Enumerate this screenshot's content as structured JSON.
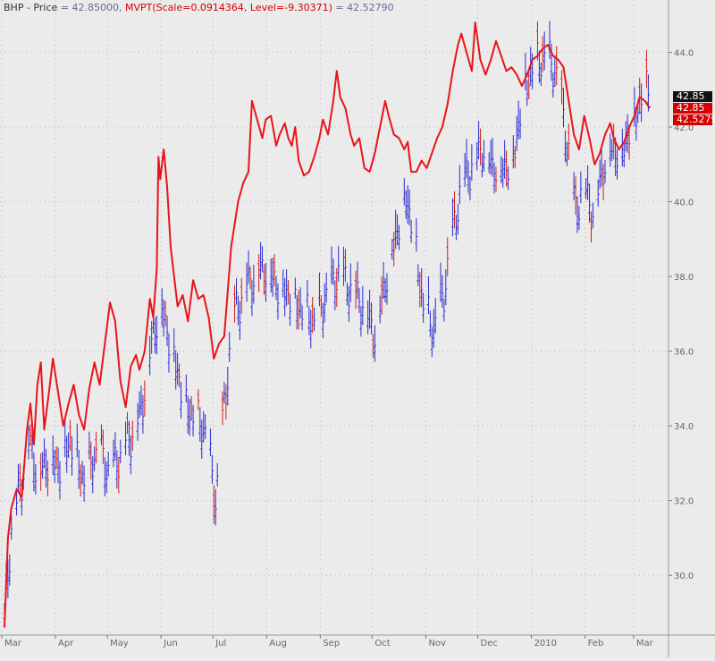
{
  "legend": {
    "symbol": "BHP",
    "separator": " - ",
    "price_label": "Price",
    "price_value": "= 42.85000,",
    "indicator_label": "MVPT(Scale=0.0914364, Level=-9.30371)",
    "indicator_value": "= 42.52790"
  },
  "axis_boxes": {
    "price_last": "42.85",
    "indicator_price": "42.85",
    "indicator_last": "42.5279"
  },
  "colors": {
    "background": "#ebebeb",
    "up_bar": "#2a2ad0",
    "down_bar": "#d41a1a",
    "indicator": "#e8141a",
    "grid": "#b8b8b8"
  },
  "chart_data": {
    "type": "bar",
    "subtype": "ohlc-price-with-indicator-line",
    "title": "",
    "ylim": [
      28.4,
      45.4
    ],
    "y_ticks": [
      "30.0",
      "32.0",
      "34.0",
      "36.0",
      "38.0",
      "40.0",
      "42.0",
      "44.0"
    ],
    "y_tick_values": [
      30,
      32,
      34,
      36,
      38,
      40,
      42,
      44
    ],
    "x_ticks": [
      "Mar",
      "Apr",
      "May",
      "Jun",
      "Jul",
      "Aug",
      "Sep",
      "Oct",
      "Nov",
      "Dec",
      "2010",
      "Feb",
      "Mar"
    ],
    "x_tick_days": [
      0,
      31,
      61,
      92,
      122,
      153,
      184,
      214,
      245,
      275,
      306,
      337,
      365
    ],
    "x_range_days": [
      0,
      378
    ],
    "grid": true,
    "price_series": {
      "name": "BHP",
      "anchors": [
        [
          0,
          28.7
        ],
        [
          4,
          31.3
        ],
        [
          8,
          32.1
        ],
        [
          14,
          33.6
        ],
        [
          20,
          32.7
        ],
        [
          26,
          33.2
        ],
        [
          31,
          32.9
        ],
        [
          38,
          33.6
        ],
        [
          46,
          32.5
        ],
        [
          54,
          33.4
        ],
        [
          61,
          32.7
        ],
        [
          70,
          33.5
        ],
        [
          78,
          34.2
        ],
        [
          86,
          36.5
        ],
        [
          90,
          37.3
        ],
        [
          94,
          36.6
        ],
        [
          98,
          35.9
        ],
        [
          104,
          34.6
        ],
        [
          110,
          34.2
        ],
        [
          116,
          33.9
        ],
        [
          122,
          32.0
        ],
        [
          127,
          34.5
        ],
        [
          132,
          36.9
        ],
        [
          140,
          37.8
        ],
        [
          150,
          38.3
        ],
        [
          158,
          37.8
        ],
        [
          165,
          37.5
        ],
        [
          172,
          37.1
        ],
        [
          180,
          36.8
        ],
        [
          186,
          37.5
        ],
        [
          193,
          38.1
        ],
        [
          200,
          37.7
        ],
        [
          207,
          37.3
        ],
        [
          214,
          36.5
        ],
        [
          220,
          37.9
        ],
        [
          226,
          39.1
        ],
        [
          232,
          40.2
        ],
        [
          237,
          39.0
        ],
        [
          242,
          37.2
        ],
        [
          248,
          36.6
        ],
        [
          254,
          37.6
        ],
        [
          258,
          38.9
        ],
        [
          264,
          40.5
        ],
        [
          270,
          41.0
        ],
        [
          276,
          41.5
        ],
        [
          282,
          41.0
        ],
        [
          288,
          40.9
        ],
        [
          294,
          41.2
        ],
        [
          300,
          43.0
        ],
        [
          306,
          43.7
        ],
        [
          312,
          43.9
        ],
        [
          318,
          43.6
        ],
        [
          322,
          42.6
        ],
        [
          326,
          41.3
        ],
        [
          330,
          39.8
        ],
        [
          335,
          40.5
        ],
        [
          340,
          39.7
        ],
        [
          345,
          40.8
        ],
        [
          350,
          41.5
        ],
        [
          356,
          41.3
        ],
        [
          360,
          41.8
        ],
        [
          364,
          42.3
        ],
        [
          368,
          42.8
        ],
        [
          372,
          43.2
        ]
      ],
      "down_days": [
        5,
        9,
        12,
        15,
        19,
        21,
        25,
        30,
        33,
        38,
        41,
        44,
        50,
        53,
        57,
        62,
        66,
        71,
        74,
        81,
        85,
        90,
        93,
        97,
        101,
        104,
        108,
        112,
        117,
        121,
        126,
        128,
        133,
        137,
        142,
        147,
        150,
        156,
        160,
        164,
        170,
        173,
        178,
        183,
        188,
        192,
        197,
        203,
        208,
        213,
        218,
        225,
        229,
        236,
        240,
        243,
        251,
        256,
        260,
        265,
        271,
        275,
        278,
        284,
        290,
        295,
        299,
        303,
        308,
        311,
        319,
        322,
        326,
        330,
        334,
        339,
        342,
        346,
        352,
        355,
        361,
        367,
        371
      ]
    },
    "indicator_series": {
      "name": "MVPT",
      "anchors": [
        [
          0,
          28.6
        ],
        [
          2,
          31.0
        ],
        [
          4,
          31.8
        ],
        [
          7,
          32.3
        ],
        [
          10,
          32.1
        ],
        [
          13,
          33.9
        ],
        [
          15,
          34.6
        ],
        [
          17,
          33.5
        ],
        [
          19,
          35.1
        ],
        [
          21,
          35.7
        ],
        [
          23,
          33.9
        ],
        [
          26,
          35.0
        ],
        [
          28,
          35.8
        ],
        [
          31,
          34.9
        ],
        [
          34,
          34.0
        ],
        [
          37,
          34.6
        ],
        [
          40,
          35.1
        ],
        [
          43,
          34.3
        ],
        [
          46,
          33.9
        ],
        [
          49,
          35.0
        ],
        [
          52,
          35.7
        ],
        [
          55,
          35.1
        ],
        [
          58,
          36.2
        ],
        [
          61,
          37.3
        ],
        [
          64,
          36.8
        ],
        [
          67,
          35.2
        ],
        [
          70,
          34.5
        ],
        [
          73,
          35.6
        ],
        [
          76,
          35.9
        ],
        [
          78,
          35.5
        ],
        [
          81,
          36.0
        ],
        [
          84,
          37.4
        ],
        [
          86,
          36.9
        ],
        [
          88,
          38.2
        ],
        [
          89,
          41.2
        ],
        [
          90,
          40.6
        ],
        [
          92,
          41.4
        ],
        [
          94,
          40.4
        ],
        [
          96,
          38.8
        ],
        [
          98,
          38.0
        ],
        [
          100,
          37.2
        ],
        [
          103,
          37.5
        ],
        [
          106,
          36.8
        ],
        [
          109,
          37.9
        ],
        [
          112,
          37.4
        ],
        [
          115,
          37.5
        ],
        [
          118,
          36.9
        ],
        [
          121,
          35.8
        ],
        [
          124,
          36.2
        ],
        [
          127,
          36.4
        ],
        [
          131,
          38.8
        ],
        [
          135,
          40.0
        ],
        [
          138,
          40.5
        ],
        [
          141,
          40.8
        ],
        [
          143,
          42.7
        ],
        [
          146,
          42.2
        ],
        [
          149,
          41.7
        ],
        [
          151,
          42.2
        ],
        [
          154,
          42.3
        ],
        [
          157,
          41.5
        ],
        [
          159,
          41.8
        ],
        [
          162,
          42.1
        ],
        [
          164,
          41.7
        ],
        [
          166,
          41.5
        ],
        [
          168,
          42.0
        ],
        [
          170,
          41.1
        ],
        [
          173,
          40.7
        ],
        [
          176,
          40.8
        ],
        [
          179,
          41.2
        ],
        [
          182,
          41.7
        ],
        [
          184,
          42.2
        ],
        [
          187,
          41.8
        ],
        [
          190,
          42.7
        ],
        [
          192,
          43.5
        ],
        [
          194,
          42.8
        ],
        [
          197,
          42.5
        ],
        [
          200,
          41.8
        ],
        [
          202,
          41.5
        ],
        [
          205,
          41.7
        ],
        [
          208,
          40.9
        ],
        [
          211,
          40.8
        ],
        [
          214,
          41.3
        ],
        [
          217,
          42.0
        ],
        [
          220,
          42.7
        ],
        [
          222,
          42.3
        ],
        [
          225,
          41.8
        ],
        [
          228,
          41.7
        ],
        [
          231,
          41.4
        ],
        [
          233,
          41.6
        ],
        [
          235,
          40.8
        ],
        [
          238,
          40.8
        ],
        [
          241,
          41.1
        ],
        [
          244,
          40.9
        ],
        [
          247,
          41.3
        ],
        [
          250,
          41.7
        ],
        [
          253,
          42.0
        ],
        [
          256,
          42.6
        ],
        [
          259,
          43.5
        ],
        [
          262,
          44.2
        ],
        [
          264,
          44.5
        ],
        [
          267,
          44.0
        ],
        [
          270,
          43.5
        ],
        [
          272,
          44.8
        ],
        [
          275,
          43.8
        ],
        [
          278,
          43.4
        ],
        [
          281,
          43.8
        ],
        [
          284,
          44.3
        ],
        [
          287,
          43.9
        ],
        [
          290,
          43.5
        ],
        [
          293,
          43.6
        ],
        [
          296,
          43.4
        ],
        [
          299,
          43.1
        ],
        [
          302,
          43.4
        ],
        [
          305,
          43.8
        ],
        [
          308,
          43.9
        ],
        [
          311,
          44.1
        ],
        [
          314,
          44.2
        ],
        [
          317,
          43.9
        ],
        [
          320,
          43.8
        ],
        [
          323,
          43.6
        ],
        [
          326,
          42.7
        ],
        [
          329,
          41.8
        ],
        [
          332,
          41.4
        ],
        [
          335,
          42.3
        ],
        [
          338,
          41.7
        ],
        [
          341,
          41.0
        ],
        [
          344,
          41.3
        ],
        [
          347,
          41.8
        ],
        [
          350,
          42.1
        ],
        [
          352,
          41.7
        ],
        [
          355,
          41.4
        ],
        [
          358,
          41.6
        ],
        [
          361,
          42.0
        ],
        [
          364,
          42.3
        ],
        [
          367,
          42.8
        ],
        [
          370,
          42.7
        ],
        [
          373,
          42.5
        ]
      ]
    }
  }
}
